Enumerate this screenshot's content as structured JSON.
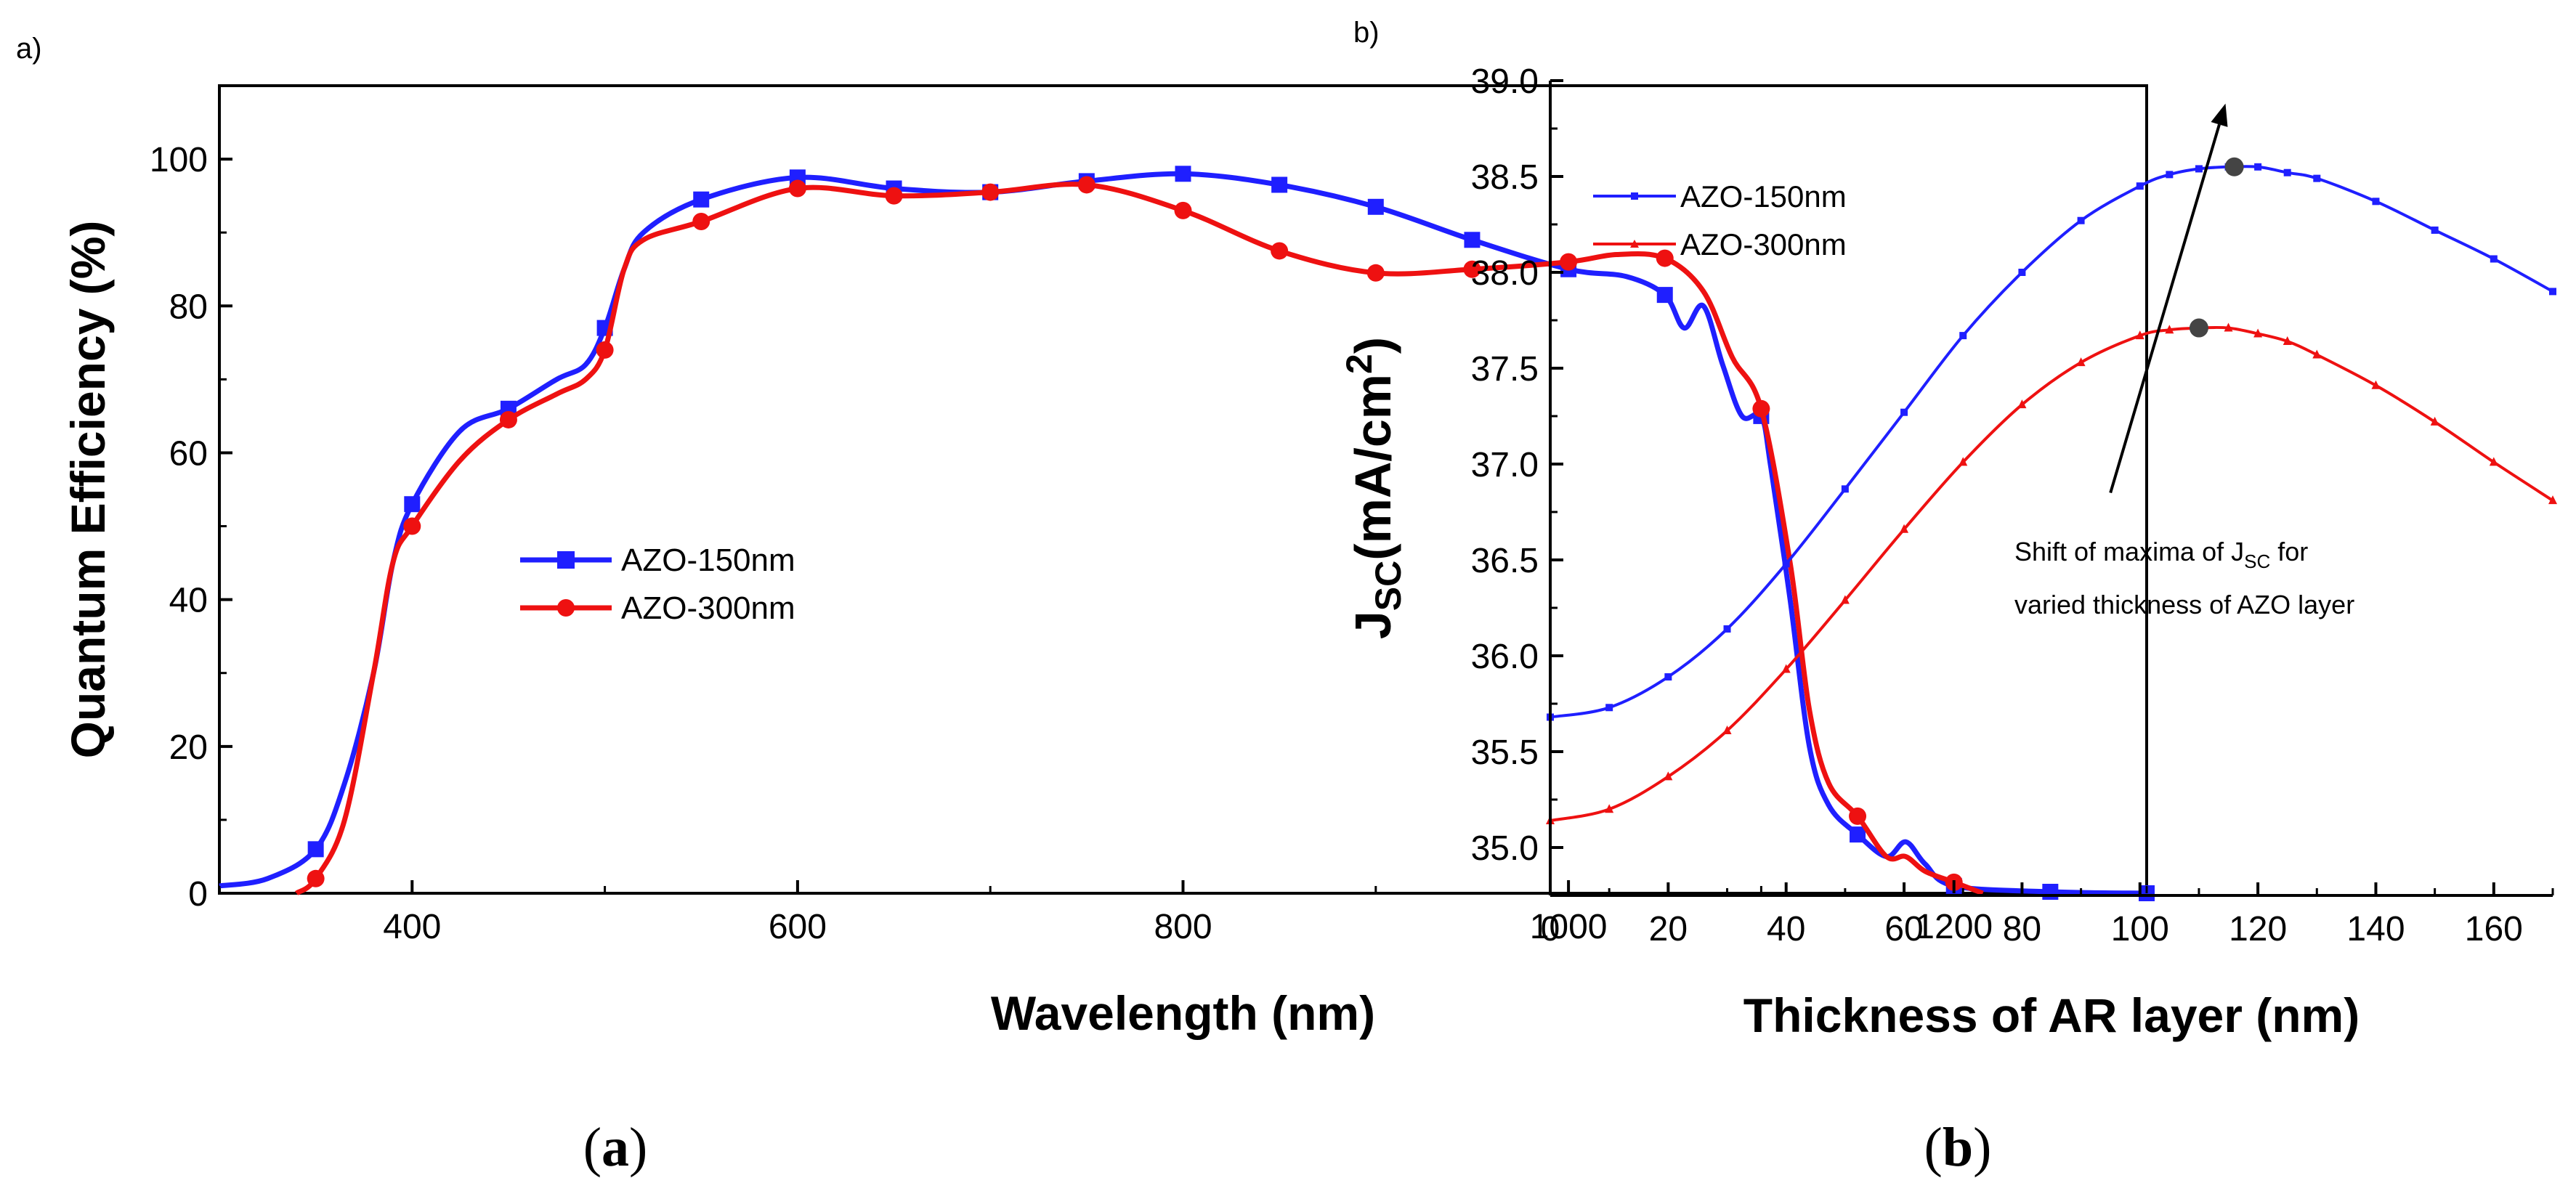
{
  "chart_data": [
    {
      "type": "line",
      "panel_label": "a)",
      "caption": "a",
      "xlabel": "Wavelength (nm)",
      "ylabel": "Quantum Efficiency (%)",
      "xlim": [
        300,
        1300
      ],
      "ylim": [
        0,
        110
      ],
      "xticks": [
        400,
        600,
        800,
        1000,
        1200
      ],
      "yticks": [
        0,
        20,
        40,
        60,
        80,
        100
      ],
      "legend_position": "center",
      "series": [
        {
          "name": "AZO-150nm",
          "color": "#1f1fff",
          "marker": "square",
          "markers_x": [
            350,
            400,
            450,
            500,
            550,
            600,
            650,
            700,
            750,
            800,
            850,
            900,
            950,
            1000,
            1050,
            1100,
            1150,
            1200,
            1250,
            1300
          ],
          "markers_y": [
            6,
            53,
            66,
            77,
            94.5,
            97.5,
            96,
            95.5,
            97,
            98,
            96.5,
            93.5,
            89,
            85,
            81.5,
            65,
            8,
            1,
            0.2,
            0
          ],
          "curve_x": [
            300,
            325,
            350,
            365,
            380,
            390,
            400,
            425,
            450,
            475,
            490,
            500,
            510,
            520,
            550,
            600,
            650,
            700,
            750,
            800,
            850,
            900,
            950,
            1000,
            1030,
            1050,
            1060,
            1070,
            1080,
            1090,
            1100,
            1105,
            1115,
            1125,
            1135,
            1150,
            1165,
            1175,
            1185,
            1200,
            1250,
            1300
          ],
          "curve_y": [
            1,
            2,
            6,
            15,
            30,
            45,
            53,
            63,
            66,
            70,
            72,
            77,
            85,
            90,
            94.5,
            97.5,
            96,
            95.5,
            97,
            98,
            96.5,
            93.5,
            89,
            85,
            84,
            81.5,
            77,
            80,
            72,
            65,
            65,
            58,
            40,
            20,
            12,
            8,
            5,
            7,
            4,
            1,
            0.2,
            0
          ]
        },
        {
          "name": "AZO-300nm",
          "color": "#ee1111",
          "marker": "circle",
          "markers_x": [
            350,
            400,
            450,
            500,
            550,
            600,
            650,
            700,
            750,
            800,
            850,
            900,
            950,
            1000,
            1050,
            1100,
            1150,
            1200
          ],
          "markers_y": [
            2,
            50,
            64.5,
            74,
            91.5,
            96,
            95,
            95.5,
            96.5,
            93,
            87.5,
            84.5,
            85,
            86,
            86.5,
            66,
            10.5,
            1.5
          ],
          "curve_x": [
            340,
            350,
            365,
            380,
            390,
            400,
            425,
            450,
            475,
            490,
            500,
            510,
            520,
            550,
            600,
            650,
            700,
            750,
            800,
            850,
            900,
            950,
            1000,
            1025,
            1050,
            1070,
            1085,
            1100,
            1115,
            1125,
            1135,
            1150,
            1165,
            1175,
            1185,
            1200,
            1215
          ],
          "curve_y": [
            0,
            2,
            10,
            30,
            45,
            50,
            59,
            64.5,
            68,
            70,
            74,
            85,
            89,
            91.5,
            96,
            95,
            95.5,
            96.5,
            93,
            87.5,
            84.5,
            85,
            86,
            87,
            86.5,
            82,
            73,
            66,
            45,
            25,
            15,
            10.5,
            5,
            5,
            3,
            1.5,
            0
          ]
        }
      ]
    },
    {
      "type": "line",
      "panel_label": "b)",
      "caption": "b",
      "xlabel": "Thickness of AR layer (nm)",
      "ylabel": "Jsc(mA/cm2)",
      "ylabel_main": "J",
      "ylabel_sub": "SC",
      "ylabel_mid": "(mA/cm",
      "ylabel_sup": "2",
      "ylabel_end": ")",
      "xlim": [
        0,
        170
      ],
      "ylim": [
        34.75,
        39.0
      ],
      "xticks": [
        0,
        20,
        40,
        60,
        80,
        100,
        120,
        140,
        160
      ],
      "yticks": [
        "35.0",
        "35.5",
        "36.0",
        "36.5",
        "37.0",
        "37.5",
        "38.0",
        "38.5",
        "39.0"
      ],
      "legend_position": "top-left",
      "annotation": {
        "line1_pre": "Shift of maxima of J",
        "line1_sub": "SC",
        "line1_post": " for",
        "line2": "varied thickness of AZO layer",
        "arrow_from": [
          95,
          36.85
        ],
        "arrow_to": [
          114.5,
          38.88
        ]
      },
      "maxima": [
        {
          "x": 116,
          "y": 38.55
        },
        {
          "x": 110,
          "y": 37.71
        }
      ],
      "series": [
        {
          "name": "AZO-150nm",
          "color": "#1f1fff",
          "marker": "square",
          "x": [
            0,
            10,
            20,
            30,
            40,
            50,
            60,
            70,
            80,
            90,
            100,
            105,
            110,
            115,
            120,
            125,
            130,
            140,
            150,
            160,
            170
          ],
          "y": [
            35.68,
            35.73,
            35.89,
            36.14,
            36.48,
            36.87,
            37.27,
            37.67,
            38.0,
            38.27,
            38.45,
            38.51,
            38.54,
            38.55,
            38.55,
            38.52,
            38.49,
            38.37,
            38.22,
            38.07,
            37.9
          ]
        },
        {
          "name": "AZO-300nm",
          "color": "#ee1111",
          "marker": "triangle",
          "x": [
            0,
            10,
            20,
            30,
            40,
            50,
            60,
            70,
            80,
            90,
            100,
            105,
            110,
            115,
            120,
            125,
            130,
            140,
            150,
            160,
            170
          ],
          "y": [
            35.14,
            35.2,
            35.37,
            35.61,
            35.93,
            36.29,
            36.66,
            37.01,
            37.31,
            37.53,
            37.67,
            37.7,
            37.71,
            37.71,
            37.68,
            37.64,
            37.57,
            37.41,
            37.22,
            37.01,
            36.81
          ]
        }
      ]
    }
  ]
}
